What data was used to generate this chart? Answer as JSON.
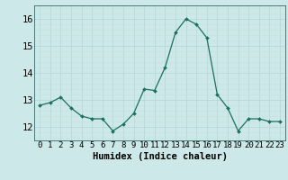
{
  "x": [
    0,
    1,
    2,
    3,
    4,
    5,
    6,
    7,
    8,
    9,
    10,
    11,
    12,
    13,
    14,
    15,
    16,
    17,
    18,
    19,
    20,
    21,
    22,
    23
  ],
  "y": [
    12.8,
    12.9,
    13.1,
    12.7,
    12.4,
    12.3,
    12.3,
    11.85,
    12.1,
    12.5,
    13.4,
    13.35,
    14.2,
    15.5,
    16.0,
    15.8,
    15.3,
    13.2,
    12.7,
    11.85,
    12.3,
    12.3,
    12.2,
    12.2
  ],
  "xlabel": "Humidex (Indice chaleur)",
  "ylim": [
    11.5,
    16.5
  ],
  "xlim": [
    -0.5,
    23.5
  ],
  "line_color": "#1a7060",
  "marker_color": "#1a7060",
  "bg_color": "#cce8e8",
  "grid_major_color": "#b8d8d8",
  "grid_minor_color": "#c8e0e0",
  "tick_labels": [
    "0",
    "1",
    "2",
    "3",
    "4",
    "5",
    "6",
    "7",
    "8",
    "9",
    "10",
    "11",
    "12",
    "13",
    "14",
    "15",
    "16",
    "17",
    "18",
    "19",
    "20",
    "21",
    "22",
    "23"
  ],
  "yticks": [
    12,
    13,
    14,
    15,
    16
  ],
  "xlabel_fontsize": 7.5,
  "tick_fontsize": 6.5,
  "ytick_fontsize": 7.5,
  "fig_width": 3.2,
  "fig_height": 2.0,
  "dpi": 100
}
